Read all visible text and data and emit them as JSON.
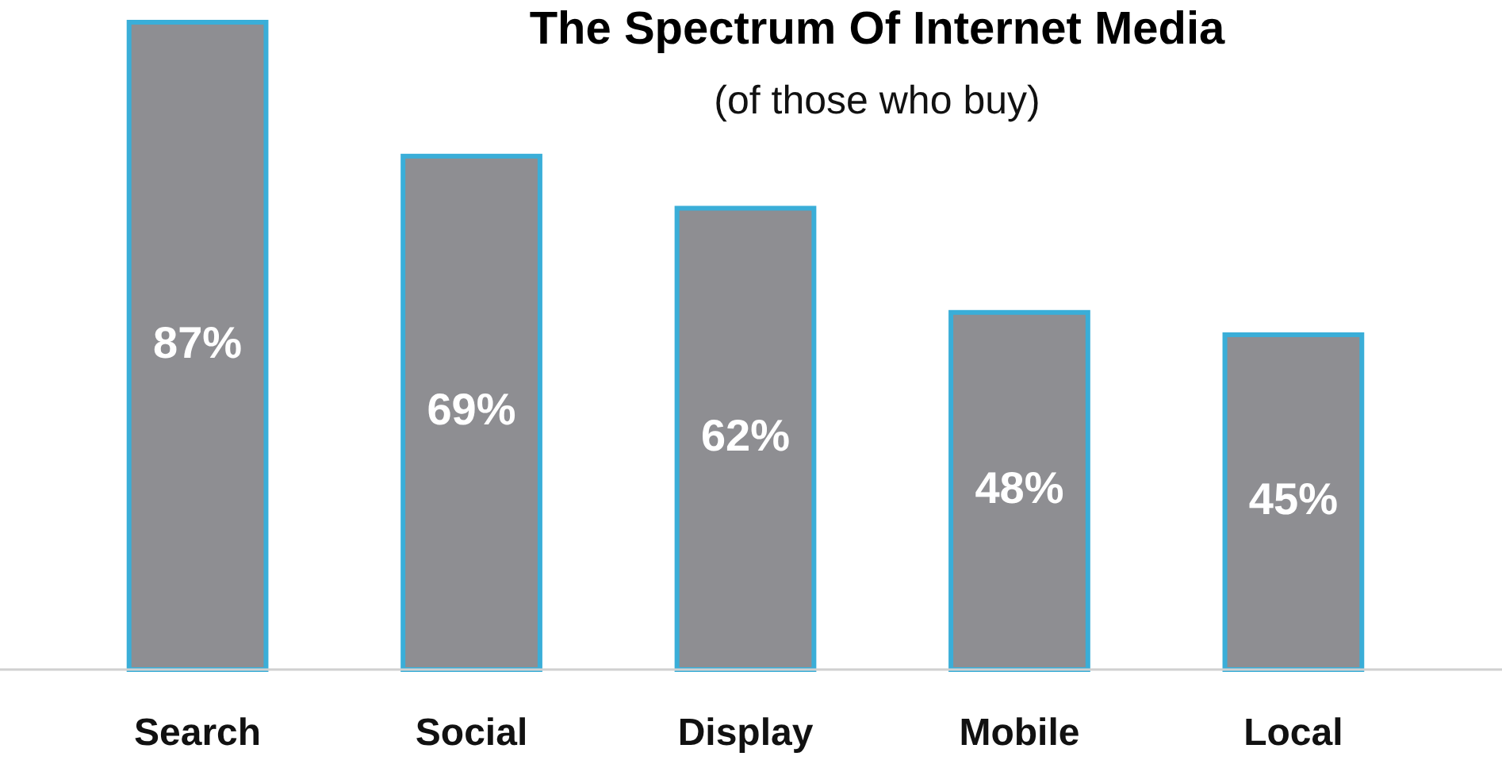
{
  "chart_data": {
    "type": "bar",
    "title": "The Spectrum Of Internet Media",
    "subtitle": "(of those who buy)",
    "categories": [
      "Search",
      "Social",
      "Display",
      "Mobile",
      "Local"
    ],
    "values": [
      87,
      69,
      62,
      48,
      45
    ],
    "value_labels": [
      "87%",
      "69%",
      "62%",
      "48%",
      "45%"
    ],
    "color": "#8e8e92"
  }
}
